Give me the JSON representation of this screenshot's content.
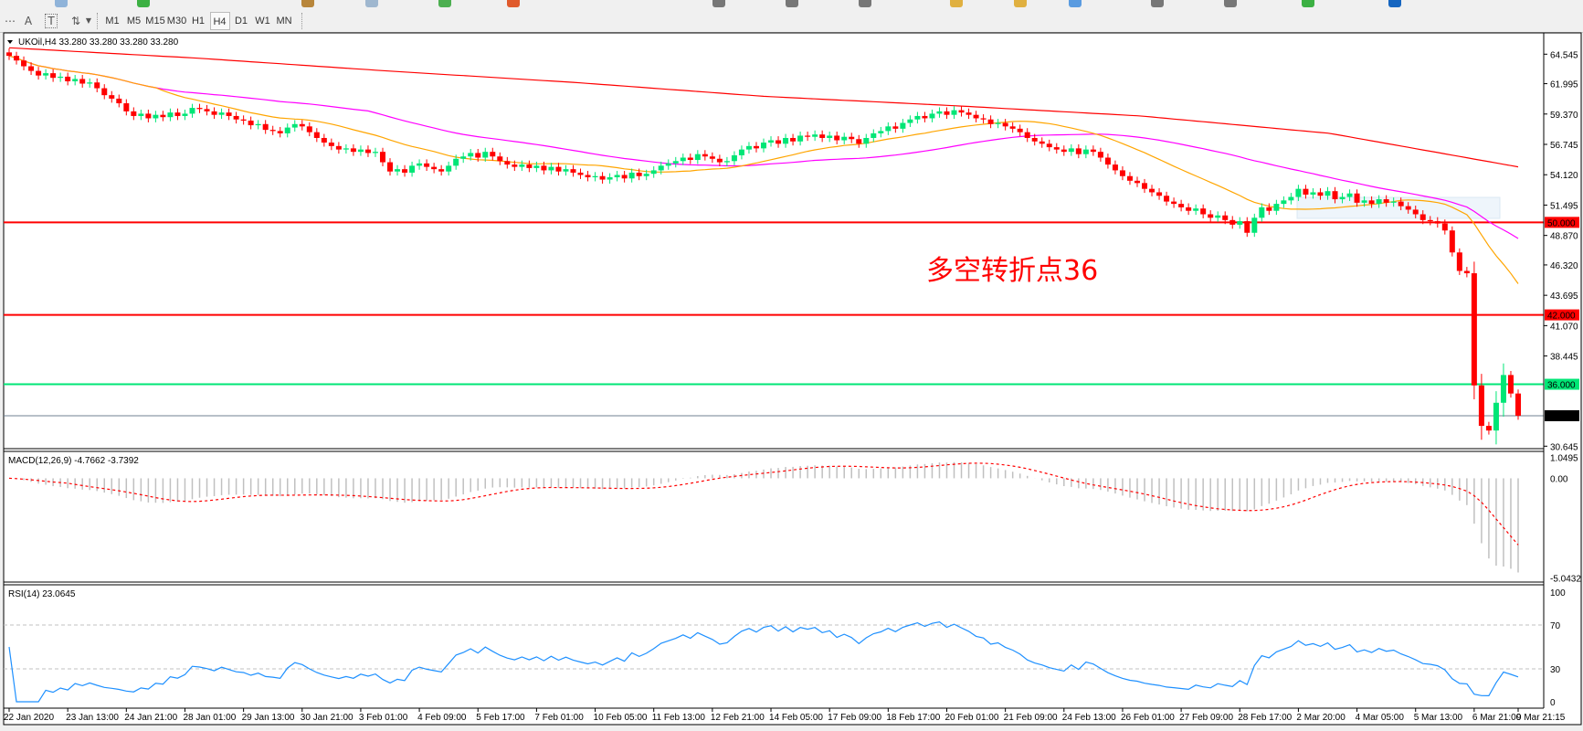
{
  "toolbar": {
    "timeframes": [
      "M1",
      "M5",
      "M15",
      "M30",
      "H1",
      "H4",
      "D1",
      "W1",
      "MN"
    ],
    "active_timeframe": "H4",
    "tools": [
      {
        "name": "text-tool",
        "glyph": "A"
      },
      {
        "name": "text-label-tool",
        "glyph": "T"
      },
      {
        "name": "arrows-tool",
        "glyph": "⇅"
      }
    ]
  },
  "chart": {
    "symbol_header": "UKOil,H4  33.280 33.280 33.280 33.280",
    "annotation": "多空转折点36",
    "colors": {
      "bull": "#00e676",
      "bear": "#ff0000",
      "ma_fast": "#ffa500",
      "ma_mid": "#ff00ff",
      "ma_long": "#ff0000",
      "level_red": "#ff0000",
      "level_green": "#00e676",
      "bid_line": "#708090",
      "macd_hist": "#c0c0c0",
      "macd_signal": "#ff0000",
      "rsi": "#1e90ff"
    },
    "price_axis": [
      "64.545",
      "61.995",
      "59.370",
      "56.745",
      "54.120",
      "51.495",
      "48.870",
      "46.320",
      "43.695",
      "41.070",
      "38.445",
      "30.645"
    ],
    "levels": [
      {
        "price": 50.0,
        "label": "50.000",
        "color": "#ff0000"
      },
      {
        "price": 42.0,
        "label": "42.000",
        "color": "#ff0000"
      },
      {
        "price": 36.0,
        "label": "36.000",
        "color": "#00e676"
      }
    ],
    "bid": {
      "price": 33.28,
      "label": "33.280"
    }
  },
  "macd": {
    "header": "MACD(12,26,9) -4.7662 -3.7392",
    "axis": [
      "1.0495",
      "0.00",
      "-5.0432"
    ],
    "range": [
      -5.0432,
      1.0495
    ]
  },
  "rsi": {
    "header": "RSI(14) 23.0645",
    "axis": [
      "100",
      "70",
      "30",
      "0"
    ],
    "levels": [
      70,
      30
    ]
  },
  "chart_data": {
    "type": "candlestick",
    "symbol": "UKOil",
    "timeframe": "H4",
    "ylim": [
      30.645,
      64.545
    ],
    "time_labels": [
      "22 Jan 2020",
      "23 Jan 13:00",
      "24 Jan 21:00",
      "28 Jan 01:00",
      "29 Jan 13:00",
      "30 Jan 21:00",
      "3 Feb 01:00",
      "4 Feb 09:00",
      "5 Feb 17:00",
      "7 Feb 01:00",
      "10 Feb 05:00",
      "11 Feb 13:00",
      "12 Feb 21:00",
      "14 Feb 05:00",
      "17 Feb 09:00",
      "18 Feb 17:00",
      "20 Feb 01:00",
      "21 Feb 09:00",
      "24 Feb 13:00",
      "26 Feb 01:00",
      "27 Feb 09:00",
      "28 Feb 17:00",
      "2 Mar 20:00",
      "4 Mar 05:00",
      "5 Mar 13:00",
      "6 Mar 21:00",
      "9 Mar 21:15"
    ],
    "closes": [
      64.4,
      64.0,
      63.5,
      63.1,
      62.7,
      62.9,
      62.5,
      62.6,
      62.2,
      62.4,
      62.0,
      62.1,
      61.6,
      61.0,
      60.7,
      60.3,
      59.6,
      59.2,
      59.4,
      59.0,
      59.3,
      59.1,
      59.5,
      59.2,
      59.4,
      59.9,
      59.8,
      59.6,
      59.3,
      59.5,
      59.2,
      58.9,
      58.8,
      58.4,
      58.5,
      58.0,
      57.9,
      57.7,
      58.2,
      58.5,
      58.3,
      57.8,
      57.3,
      56.9,
      56.6,
      56.3,
      56.4,
      56.1,
      56.3,
      56.0,
      56.1,
      55.2,
      54.4,
      54.6,
      54.3,
      54.9,
      55.1,
      54.8,
      54.6,
      54.4,
      54.9,
      55.5,
      55.7,
      56.0,
      55.6,
      56.1,
      55.7,
      55.3,
      55.0,
      54.8,
      55.0,
      54.7,
      54.9,
      54.5,
      54.8,
      54.4,
      54.6,
      54.3,
      54.1,
      53.9,
      54.0,
      53.7,
      53.9,
      54.1,
      53.8,
      54.3,
      54.0,
      54.2,
      54.5,
      54.9,
      55.1,
      55.3,
      55.6,
      55.4,
      55.9,
      55.7,
      55.5,
      55.2,
      55.3,
      55.8,
      56.3,
      56.6,
      56.4,
      56.9,
      57.1,
      56.8,
      57.3,
      57.0,
      57.5,
      57.4,
      57.6,
      57.3,
      57.5,
      57.1,
      57.4,
      57.2,
      56.8,
      57.3,
      57.7,
      57.9,
      58.3,
      58.1,
      58.6,
      58.9,
      59.2,
      59.0,
      59.4,
      59.6,
      59.3,
      59.7,
      59.5,
      59.3,
      59.0,
      58.9,
      58.5,
      58.6,
      58.3,
      58.1,
      57.8,
      57.3,
      57.0,
      56.8,
      56.5,
      56.3,
      56.1,
      56.4,
      55.9,
      56.3,
      56.1,
      55.6,
      55.0,
      54.5,
      54.0,
      53.6,
      53.4,
      52.9,
      52.6,
      52.3,
      51.8,
      51.6,
      51.3,
      51.0,
      51.2,
      50.7,
      50.4,
      50.6,
      50.2,
      49.8,
      50.1,
      49.1,
      50.4,
      51.3,
      51.0,
      51.6,
      51.9,
      52.2,
      52.9,
      52.4,
      52.6,
      52.3,
      52.7,
      52.0,
      52.2,
      52.5,
      51.7,
      51.9,
      51.6,
      52.0,
      51.7,
      51.8,
      51.4,
      51.1,
      50.7,
      50.2,
      50.1,
      49.9,
      49.3,
      47.4,
      45.8,
      45.6,
      35.9,
      32.4,
      32.0,
      34.4,
      36.8,
      35.2,
      33.28
    ],
    "ma_fast_period": 21,
    "ma_mid_period": 50,
    "ma_long_values": [
      65.1,
      64.2,
      63.1,
      62.1,
      60.9,
      60.1,
      59.2,
      57.7,
      54.8
    ],
    "macd": {
      "fast": 12,
      "slow": 26,
      "signal": 9,
      "value": -4.7662,
      "signal_value": -3.7392
    },
    "rsi": {
      "period": 14,
      "value": 23.0645
    }
  }
}
